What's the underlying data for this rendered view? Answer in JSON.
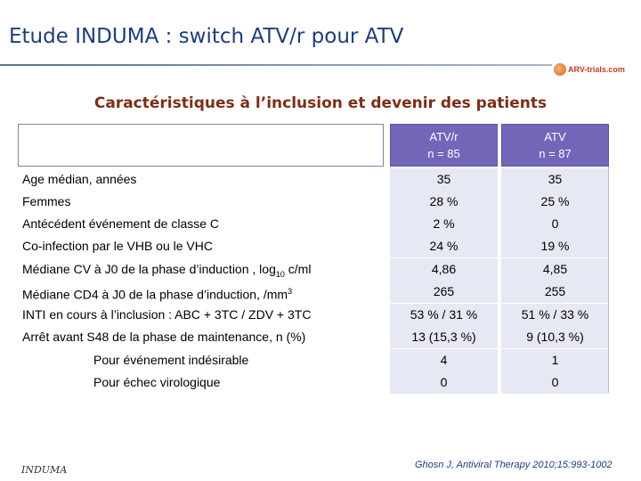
{
  "slide": {
    "title": "Etude INDUMA : switch ATV/r pour ATV",
    "subtitle": "Caractéristiques à l’inclusion et devenir des patients",
    "logo_text": "ARV-trials.com",
    "footer_logo": "INDUMA",
    "citation": "Ghosn J, Antiviral Therapy 2010;15:993-1002"
  },
  "table": {
    "columns": [
      {
        "name": "ATV/r",
        "n": "n = 85"
      },
      {
        "name": "ATV",
        "n": "n = 87"
      }
    ],
    "rows": [
      {
        "label": "Age médian, années",
        "v1": "35",
        "v2": "35"
      },
      {
        "label": "Femmes",
        "v1": "28 %",
        "v2": "25 %"
      },
      {
        "label": "Antécédent événement de classe C",
        "v1": "2 %",
        "v2": "0"
      },
      {
        "label": "Co-infection par le VHB ou le VHC",
        "v1": "24 %",
        "v2": "19 %"
      },
      {
        "label_pre": "Médiane CV à J0 de la phase d’induction , log",
        "label_sub": "10",
        "label_post": " c/ml",
        "v1": "4,86",
        "v2": "4,85"
      },
      {
        "label_pre": "Médiane CD4 à J0 de la phase d’induction, /mm",
        "label_sup": "3",
        "v1": "265",
        "v2": "255"
      },
      {
        "label": "INTI en cours à l’inclusion : ABC + 3TC / ZDV + 3TC",
        "v1": "53 % / 31 %",
        "v2": "51 % / 33 %"
      },
      {
        "label": "Arrêt avant S48 de la phase de maintenance, n (%)",
        "v1": "13 (15,3 %)",
        "v2": "9 (10,3 %)"
      },
      {
        "label": "Pour événement indésirable",
        "v1": "4",
        "v2": "1"
      },
      {
        "label": "Pour échec virologique",
        "v1": "0",
        "v2": "0"
      }
    ]
  }
}
